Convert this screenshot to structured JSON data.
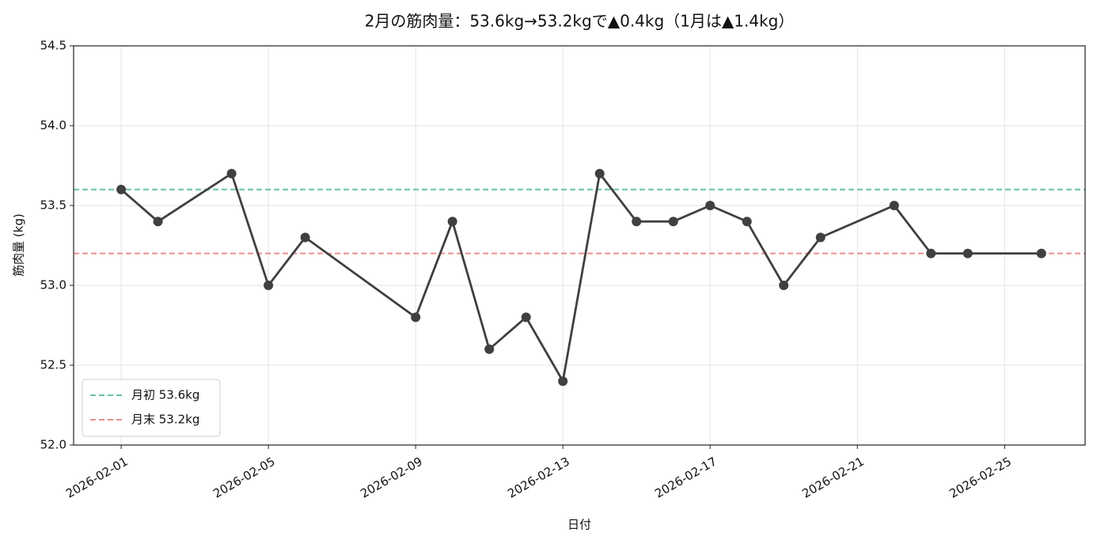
{
  "chart_data": {
    "type": "line",
    "title": "2月の筋肉量：53.6kg→53.2kgで▲0.4kg（1月は▲1.4kg）",
    "x_label": "日付",
    "y_label": "筋肉量 (kg)",
    "x": [
      "2026-02-01",
      "2026-02-02",
      "2026-02-04",
      "2026-02-05",
      "2026-02-06",
      "2026-02-09",
      "2026-02-10",
      "2026-02-11",
      "2026-02-12",
      "2026-02-13",
      "2026-02-14",
      "2026-02-15",
      "2026-02-16",
      "2026-02-17",
      "2026-02-18",
      "2026-02-19",
      "2026-02-20",
      "2026-02-22",
      "2026-02-23",
      "2026-02-24",
      "2026-02-26"
    ],
    "series": [
      {
        "color": "#404040",
        "values": [
          53.6,
          53.4,
          53.7,
          53.0,
          53.3,
          52.8,
          53.4,
          52.6,
          52.8,
          52.4,
          53.7,
          53.4,
          53.4,
          53.5,
          53.4,
          53.0,
          53.3,
          53.5,
          53.2,
          53.2,
          53.2
        ]
      }
    ],
    "reference_lines": [
      {
        "name": "月初 53.6kg",
        "value": 53.6,
        "color": "#66c2a5"
      },
      {
        "name": "月末 53.2kg",
        "value": 53.2,
        "color": "#e8908a"
      }
    ],
    "xlim": [
      "2026-01-30T17:00:00Z",
      "2026-02-27T04:30:00Z"
    ],
    "xticks": [
      "2026-02-01",
      "2026-02-05",
      "2026-02-09",
      "2026-02-13",
      "2026-02-17",
      "2026-02-21",
      "2026-02-25"
    ],
    "ylim": [
      52.0,
      54.5
    ],
    "yticks": [
      {
        "value": 52.0,
        "label": "52.0"
      },
      {
        "value": 52.5,
        "label": "52.5"
      },
      {
        "value": 53.0,
        "label": "53.0"
      },
      {
        "value": 53.5,
        "label": "53.5"
      },
      {
        "value": 54.0,
        "label": "54.0"
      },
      {
        "value": 54.5,
        "label": "54.5"
      }
    ],
    "grid": true,
    "legend": "lower left"
  }
}
